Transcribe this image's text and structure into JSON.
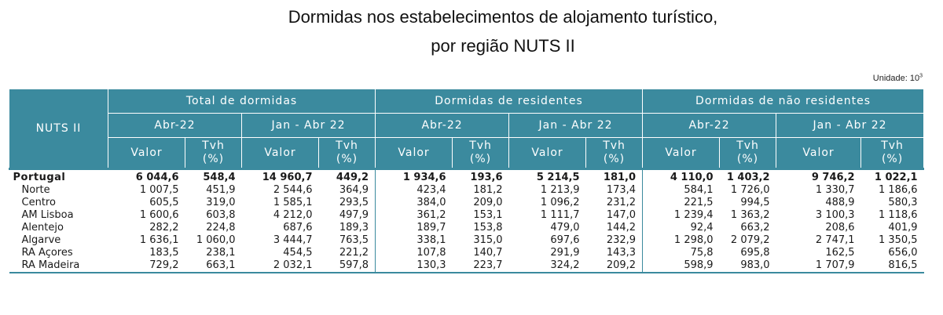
{
  "title_line1": "Dormidas nos estabelecimentos de alojamento turístico,",
  "title_line2": "por região NUTS II",
  "unit_label": "Unidade: 10",
  "unit_exp": "3",
  "header": {
    "nuts": "NUTS II",
    "groups": [
      "Total de dormidas",
      "Dormidas de residentes",
      "Dormidas de não residentes"
    ],
    "periods": [
      "Abr-22",
      "Jan - Abr 22"
    ],
    "valor": "Valor",
    "tvh_line1": "Tvh",
    "tvh_line2": "(%)"
  },
  "accent_color": "#3b8a9e",
  "rows": [
    {
      "region": "Portugal",
      "values": [
        "6 044,6",
        "548,4",
        "14 960,7",
        "449,2",
        "1 934,6",
        "193,6",
        "5 214,5",
        "181,0",
        "4 110,0",
        "1 403,2",
        "9 746,2",
        "1 022,1"
      ]
    },
    {
      "region": "Norte",
      "values": [
        "1 007,5",
        "451,9",
        "2 544,6",
        "364,9",
        "423,4",
        "181,2",
        "1 213,9",
        "173,4",
        "584,1",
        "1 726,0",
        "1 330,7",
        "1 186,6"
      ]
    },
    {
      "region": "Centro",
      "values": [
        "605,5",
        "319,0",
        "1 585,1",
        "293,5",
        "384,0",
        "209,0",
        "1 096,2",
        "231,2",
        "221,5",
        "994,5",
        "488,9",
        "580,3"
      ]
    },
    {
      "region": "AM Lisboa",
      "values": [
        "1 600,6",
        "603,8",
        "4 212,0",
        "497,9",
        "361,2",
        "153,1",
        "1 111,7",
        "147,0",
        "1 239,4",
        "1 363,2",
        "3 100,3",
        "1 118,6"
      ]
    },
    {
      "region": "Alentejo",
      "values": [
        "282,2",
        "224,8",
        "687,6",
        "189,3",
        "189,7",
        "153,8",
        "479,0",
        "144,2",
        "92,4",
        "663,2",
        "208,6",
        "401,9"
      ]
    },
    {
      "region": "Algarve",
      "values": [
        "1 636,1",
        "1 060,0",
        "3 444,7",
        "763,5",
        "338,1",
        "315,0",
        "697,6",
        "232,9",
        "1 298,0",
        "2 079,2",
        "2 747,1",
        "1 350,5"
      ]
    },
    {
      "region": "RA Açores",
      "values": [
        "183,5",
        "238,1",
        "454,5",
        "221,2",
        "107,8",
        "140,7",
        "291,9",
        "143,3",
        "75,8",
        "695,8",
        "162,5",
        "656,0"
      ]
    },
    {
      "region": "RA Madeira",
      "values": [
        "729,2",
        "663,1",
        "2 032,1",
        "597,8",
        "130,3",
        "223,7",
        "324,2",
        "209,2",
        "598,9",
        "983,0",
        "1 707,9",
        "816,5"
      ]
    }
  ]
}
